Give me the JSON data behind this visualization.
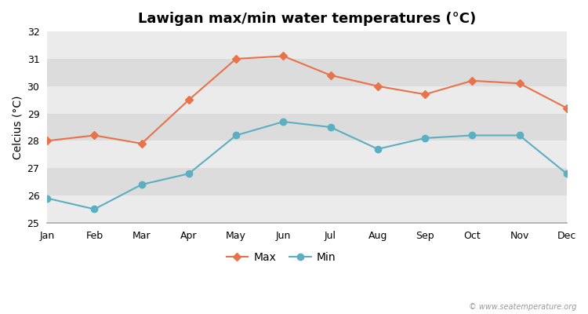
{
  "title": "Lawigan max/min water temperatures (°C)",
  "ylabel": "Celcius (°C)",
  "months": [
    "Jan",
    "Feb",
    "Mar",
    "Apr",
    "May",
    "Jun",
    "Jul",
    "Aug",
    "Sep",
    "Oct",
    "Nov",
    "Dec"
  ],
  "max_temps": [
    28.0,
    28.2,
    27.9,
    29.5,
    31.0,
    31.1,
    30.4,
    30.0,
    29.7,
    30.2,
    30.1,
    29.2
  ],
  "min_temps": [
    25.9,
    25.5,
    26.4,
    26.8,
    28.2,
    28.7,
    28.5,
    27.7,
    28.1,
    28.2,
    28.2,
    26.8
  ],
  "max_color": "#E8724A",
  "min_color": "#5BAFC1",
  "bg_color": "#FFFFFF",
  "band_light": "#EBEBEB",
  "band_dark": "#DCDCDC",
  "ylim": [
    25,
    32
  ],
  "yticks": [
    25,
    26,
    27,
    28,
    29,
    30,
    31,
    32
  ],
  "marker_max": "D",
  "marker_min": "o",
  "marker_size_max": 5,
  "marker_size_min": 6,
  "watermark": "© www.seatemperature.org",
  "title_fontsize": 13,
  "label_fontsize": 10,
  "tick_fontsize": 9
}
